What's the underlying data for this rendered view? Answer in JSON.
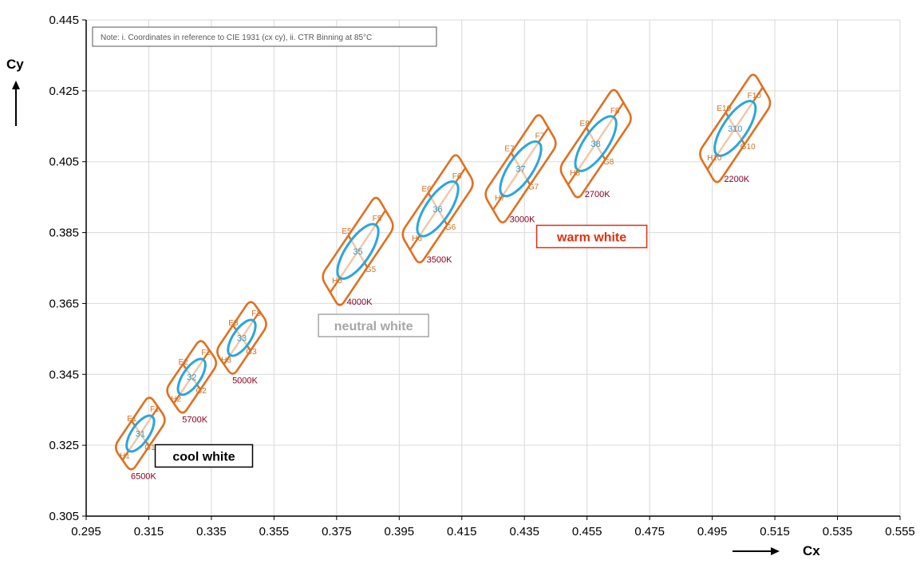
{
  "colors": {
    "outer": "#E07020",
    "inner": "#2AA6DC",
    "bin_label_outer": "#D07020",
    "bin_label_inner": "#2A9AD0",
    "cct": "#8B0020",
    "warm": "#E03010",
    "neutral": "#A6A6A6",
    "cool": "#000000",
    "grid": "#D9D9D9",
    "axis": "#000000"
  },
  "chart_data": {
    "type": "scatter",
    "title": "",
    "note": "Note: i. Coordinates in reference to CIE 1931 (cx cy), ii. CTR Binning at 85°C",
    "xlabel": "Cx",
    "ylabel": "Cy",
    "xlim": [
      0.295,
      0.555
    ],
    "ylim": [
      0.305,
      0.445
    ],
    "x_ticks": [
      0.295,
      0.315,
      0.335,
      0.355,
      0.375,
      0.395,
      0.415,
      0.435,
      0.455,
      0.475,
      0.495,
      0.515,
      0.535,
      0.555
    ],
    "x_tick_labels": [
      "0.295",
      "0.315",
      "0.335",
      "0.355",
      "0.375",
      "0.395",
      "0.415",
      "0.435",
      "0.455",
      "0.475",
      "0.495",
      "0.515",
      "0.535",
      "0.555"
    ],
    "y_ticks": [
      0.305,
      0.325,
      0.345,
      0.365,
      0.385,
      0.405,
      0.425,
      0.445
    ],
    "y_tick_labels": [
      "0.305",
      "0.325",
      "0.345",
      "0.365",
      "0.385",
      "0.405",
      "0.425",
      "0.445"
    ],
    "grid": true,
    "bins": [
      {
        "id": "1",
        "inner_label": "31",
        "cct": "6500K",
        "cx": 0.3123,
        "cy": 0.3283,
        "quadrants": [
          "E1",
          "F1",
          "G1",
          "H1"
        ]
      },
      {
        "id": "2",
        "inner_label": "32",
        "cct": "5700K",
        "cx": 0.3287,
        "cy": 0.3443,
        "quadrants": [
          "E2",
          "F2",
          "G2",
          "H2"
        ]
      },
      {
        "id": "3",
        "inner_label": "33",
        "cct": "5000K",
        "cx": 0.3447,
        "cy": 0.3553,
        "quadrants": [
          "E3",
          "F3",
          "G3",
          "H3"
        ]
      },
      {
        "id": "5",
        "inner_label": "35",
        "cct": "4000K",
        "cx": 0.3818,
        "cy": 0.3797,
        "quadrants": [
          "E5",
          "F5",
          "G5",
          "H5"
        ]
      },
      {
        "id": "6",
        "inner_label": "36",
        "cct": "3500K",
        "cx": 0.4073,
        "cy": 0.3917,
        "quadrants": [
          "E6",
          "F6",
          "G6",
          "H6"
        ]
      },
      {
        "id": "7",
        "inner_label": "37",
        "cct": "3000K",
        "cx": 0.4338,
        "cy": 0.403,
        "quadrants": [
          "E7",
          "F7",
          "G7",
          "H7"
        ]
      },
      {
        "id": "8",
        "inner_label": "38",
        "cct": "2700K",
        "cx": 0.4578,
        "cy": 0.4101,
        "quadrants": [
          "E8",
          "F8",
          "G8",
          "H8"
        ]
      },
      {
        "id": "10",
        "inner_label": "310",
        "cct": "2200K",
        "cx": 0.5023,
        "cy": 0.4144,
        "quadrants": [
          "E10",
          "F10",
          "G10",
          "H10"
        ]
      }
    ],
    "regions": [
      {
        "key": "warm",
        "label": "warm white",
        "cx": 0.4565,
        "cy": 0.3839
      },
      {
        "key": "neutral",
        "label": "neutral white",
        "cx": 0.3868,
        "cy": 0.3588
      },
      {
        "key": "cool",
        "label": "cool white",
        "cx": 0.3326,
        "cy": 0.322
      }
    ]
  }
}
